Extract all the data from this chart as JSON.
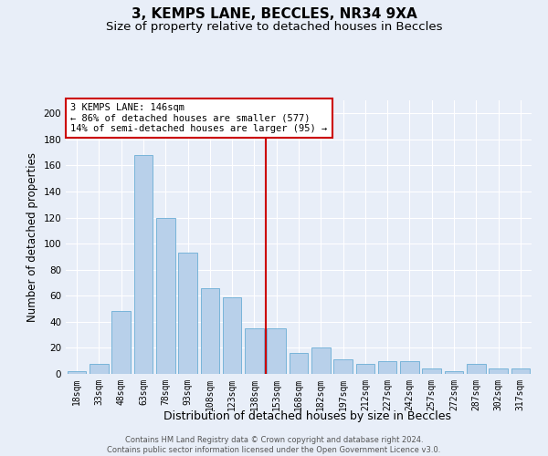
{
  "title1": "3, KEMPS LANE, BECCLES, NR34 9XA",
  "title2": "Size of property relative to detached houses in Beccles",
  "xlabel": "Distribution of detached houses by size in Beccles",
  "ylabel": "Number of detached properties",
  "categories": [
    "18sqm",
    "33sqm",
    "48sqm",
    "63sqm",
    "78sqm",
    "93sqm",
    "108sqm",
    "123sqm",
    "138sqm",
    "153sqm",
    "168sqm",
    "182sqm",
    "197sqm",
    "212sqm",
    "227sqm",
    "242sqm",
    "257sqm",
    "272sqm",
    "287sqm",
    "302sqm",
    "317sqm"
  ],
  "values": [
    2,
    8,
    48,
    168,
    120,
    93,
    66,
    59,
    35,
    35,
    16,
    20,
    11,
    8,
    10,
    10,
    4,
    2,
    8,
    4,
    4
  ],
  "bar_color": "#b8d0ea",
  "bar_edge_color": "#6aadd5",
  "vline_color": "#cc0000",
  "annotation_line1": "3 KEMPS LANE: 146sqm",
  "annotation_line2": "← 86% of detached houses are smaller (577)",
  "annotation_line3": "14% of semi-detached houses are larger (95) →",
  "annotation_box_color": "#ffffff",
  "annotation_box_edge_color": "#cc0000",
  "ylim": [
    0,
    210
  ],
  "yticks": [
    0,
    20,
    40,
    60,
    80,
    100,
    120,
    140,
    160,
    180,
    200
  ],
  "footer1": "Contains HM Land Registry data © Crown copyright and database right 2024.",
  "footer2": "Contains public sector information licensed under the Open Government Licence v3.0.",
  "bg_color": "#e8eef8",
  "plot_bg_color": "#e8eef8",
  "title_fontsize": 11,
  "subtitle_fontsize": 9.5,
  "tick_fontsize": 7,
  "ylabel_fontsize": 8.5,
  "xlabel_fontsize": 9,
  "footer_fontsize": 6
}
